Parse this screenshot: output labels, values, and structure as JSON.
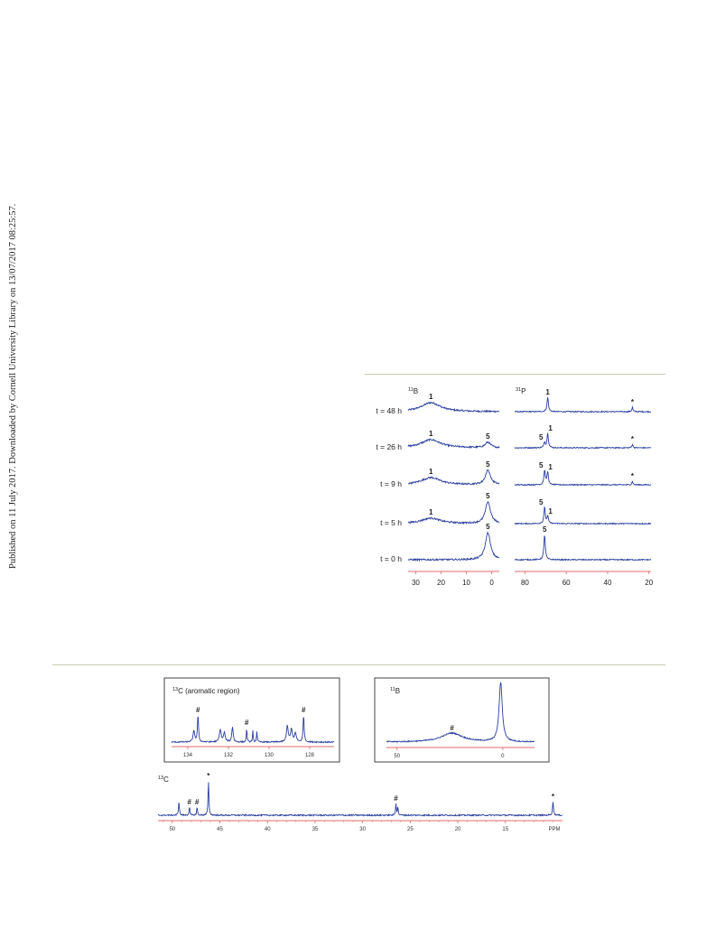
{
  "side_text": "Published on 11 July 2017. Downloaded by Cornell University Library on 13/07/2017 08:25:57.",
  "colors": {
    "trace": "#2a3f9e",
    "axis": "#e06b6b",
    "rule": "#c9cbb0",
    "frame": "#444444"
  },
  "chart_data": [
    {
      "type": "line",
      "panel": "11B stacked spectra",
      "title_html": "11B",
      "x_ticks": [
        30,
        20,
        10,
        0
      ],
      "xlim": [
        33,
        -3
      ],
      "rows": [
        {
          "label": "t = 48 h",
          "peaks": [
            {
              "x": 24,
              "label": "1",
              "h": 10,
              "w": 4.5
            }
          ]
        },
        {
          "label": "t = 26 h",
          "peaks": [
            {
              "x": 24,
              "label": "1",
              "h": 9,
              "w": 4.5
            },
            {
              "x": 1.5,
              "label": "5",
              "h": 6,
              "w": 1.2
            }
          ]
        },
        {
          "label": "t = 9 h",
          "peaks": [
            {
              "x": 24,
              "label": "1",
              "h": 8,
              "w": 4.5
            },
            {
              "x": 1.5,
              "label": "5",
              "h": 16,
              "w": 1.2
            }
          ]
        },
        {
          "label": "t = 5 h",
          "peaks": [
            {
              "x": 24,
              "label": "1",
              "h": 6,
              "w": 4.5
            },
            {
              "x": 1.5,
              "label": "5",
              "h": 24,
              "w": 1.2
            }
          ]
        },
        {
          "label": "t = 0 h",
          "peaks": [
            {
              "x": 1.5,
              "label": "5",
              "h": 30,
              "w": 1.2
            }
          ]
        }
      ]
    },
    {
      "type": "line",
      "panel": "31P stacked spectra",
      "title_html": "31P",
      "x_ticks": [
        80,
        60,
        40,
        20
      ],
      "xlim": [
        85,
        19
      ],
      "rows": [
        {
          "label": "t = 48 h",
          "peaks": [
            {
              "x": 69,
              "label": "1",
              "h": 16,
              "w": 0.4
            },
            {
              "x": 28,
              "label": "*",
              "h": 5,
              "w": 0.3
            }
          ]
        },
        {
          "label": "t = 26 h",
          "peaks": [
            {
              "x": 70.5,
              "label": "5",
              "h": 6,
              "w": 0.4
            },
            {
              "x": 69,
              "label": "1",
              "h": 16,
              "w": 0.4
            },
            {
              "x": 28,
              "label": "*",
              "h": 4,
              "w": 0.3
            }
          ]
        },
        {
          "label": "t = 9 h",
          "peaks": [
            {
              "x": 70.5,
              "label": "5",
              "h": 16,
              "w": 0.4
            },
            {
              "x": 69,
              "label": "1",
              "h": 14,
              "w": 0.4
            },
            {
              "x": 28,
              "label": "*",
              "h": 4,
              "w": 0.3
            }
          ]
        },
        {
          "label": "t = 5 h",
          "peaks": [
            {
              "x": 70.5,
              "label": "5",
              "h": 18,
              "w": 0.4
            },
            {
              "x": 69,
              "label": "1",
              "h": 8,
              "w": 0.4
            }
          ]
        },
        {
          "label": "t = 0 h",
          "peaks": [
            {
              "x": 70.5,
              "label": "5",
              "h": 28,
              "w": 0.4
            }
          ]
        }
      ]
    },
    {
      "type": "line",
      "panel": "13C aromatic region inset",
      "title_html": "13C (aromatic region)",
      "x_ticks": [
        134,
        132,
        130,
        128
      ],
      "xlim": [
        134.8,
        126.8
      ],
      "peaks": [
        {
          "x": 133.5,
          "label": "#",
          "h": 30,
          "w": 0.03
        },
        {
          "x": 133.7,
          "label": "",
          "h": 12,
          "w": 0.05
        },
        {
          "x": 132.4,
          "label": "",
          "h": 14,
          "w": 0.05
        },
        {
          "x": 132.2,
          "label": "",
          "h": 10,
          "w": 0.05
        },
        {
          "x": 131.8,
          "label": "",
          "h": 17,
          "w": 0.04
        },
        {
          "x": 131.1,
          "label": "#",
          "h": 16,
          "w": 0.02
        },
        {
          "x": 130.8,
          "label": "",
          "h": 12,
          "w": 0.02
        },
        {
          "x": 130.6,
          "label": "",
          "h": 12,
          "w": 0.02
        },
        {
          "x": 129.1,
          "label": "",
          "h": 18,
          "w": 0.05
        },
        {
          "x": 128.9,
          "label": "",
          "h": 14,
          "w": 0.05
        },
        {
          "x": 128.7,
          "label": "",
          "h": 10,
          "w": 0.05
        },
        {
          "x": 128.3,
          "label": "#",
          "h": 30,
          "w": 0.03
        }
      ]
    },
    {
      "type": "line",
      "panel": "11B inset",
      "title_html": "11B",
      "x_ticks": [
        50,
        0
      ],
      "xlim": [
        55,
        -15
      ],
      "peaks": [
        {
          "x": 24,
          "label": "#",
          "h": 10,
          "w": 6
        },
        {
          "x": 1,
          "label": "",
          "h": 66,
          "w": 0.9
        }
      ]
    },
    {
      "type": "line",
      "panel": "13C full spectrum",
      "title_html": "13C",
      "x_ticks": [
        50,
        45,
        40,
        35,
        30,
        25,
        20,
        15,
        "PPM"
      ],
      "xlim": [
        51.5,
        9
      ],
      "peaks": [
        {
          "x": 49.3,
          "label": "",
          "h": 16,
          "w": 0.05
        },
        {
          "x": 48.2,
          "label": "#",
          "h": 9,
          "w": 0.05
        },
        {
          "x": 47.4,
          "label": "#",
          "h": 9,
          "w": 0.05
        },
        {
          "x": 46.2,
          "label": "*",
          "h": 38,
          "w": 0.05
        },
        {
          "x": 26.5,
          "label": "#",
          "h": 13,
          "w": 0.05
        },
        {
          "x": 26.3,
          "label": "",
          "h": 9,
          "w": 0.05
        },
        {
          "x": 10.0,
          "label": "*",
          "h": 15,
          "w": 0.06
        }
      ]
    }
  ]
}
